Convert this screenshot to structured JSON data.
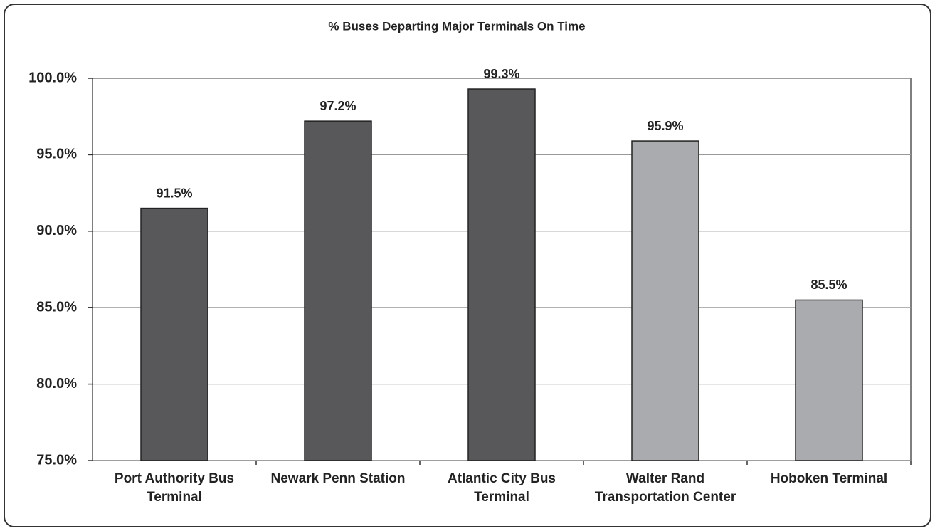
{
  "chart_data": {
    "type": "bar",
    "title": "% Buses Departing Major Terminals On Time",
    "categories": [
      "Port Authority Bus Terminal",
      "Newark Penn Station",
      "Atlantic City Bus Terminal",
      "Walter Rand Transportation Center",
      "Hoboken Terminal"
    ],
    "values": [
      91.5,
      97.2,
      99.3,
      95.9,
      85.5
    ],
    "value_labels": [
      "91.5%",
      "97.2%",
      "99.3%",
      "95.9%",
      "85.5%"
    ],
    "colors": [
      "#58585a",
      "#58585a",
      "#58585a",
      "#a9abae",
      "#a9abae"
    ],
    "ylim": [
      75,
      100
    ],
    "yticks": [
      {
        "value": 75,
        "label": "75.0%"
      },
      {
        "value": 80,
        "label": "80.0%"
      },
      {
        "value": 85,
        "label": "85.0%"
      },
      {
        "value": 90,
        "label": "90.0%"
      },
      {
        "value": 95,
        "label": "95.0%"
      },
      {
        "value": 100,
        "label": "100.0%"
      }
    ],
    "grid": true
  }
}
